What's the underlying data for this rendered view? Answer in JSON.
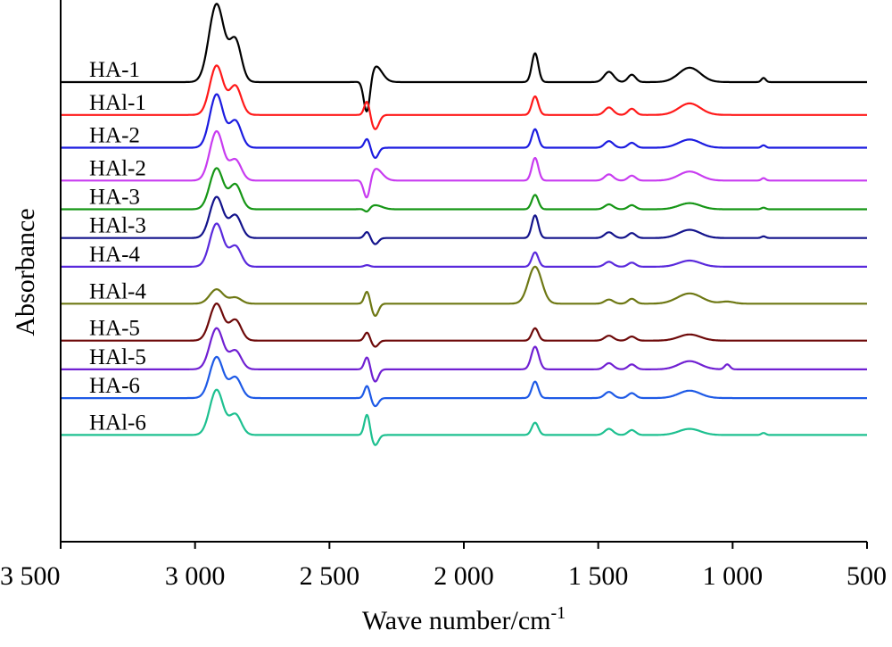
{
  "chart_data": {
    "type": "line",
    "title": "",
    "xlabel": "Wave number/cm",
    "xlabel_superscript": "-1",
    "ylabel": "Absorbance",
    "xlim": [
      3500,
      500
    ],
    "x_reversed": true,
    "x_ticks": [
      3500,
      3000,
      2500,
      2000,
      1500,
      1000,
      500
    ],
    "x_tick_labels": [
      "3 500",
      "3 000",
      "2 500",
      "2 000",
      "1 500",
      "1 000",
      "500"
    ],
    "y_ticks_shown": false,
    "legend": "inline labels at left of each trace",
    "series": [
      {
        "name": "HA-1",
        "color": "#000000",
        "offset": 11.2,
        "peaks": [
          [
            2920,
            1.9,
            28
          ],
          [
            2850,
            1.0,
            22
          ],
          [
            2360,
            -0.9,
            12
          ],
          [
            2330,
            0.4,
            25
          ],
          [
            1735,
            0.7,
            12
          ],
          [
            1460,
            0.25,
            18
          ],
          [
            1375,
            0.18,
            14
          ],
          [
            1160,
            0.35,
            40
          ],
          [
            885,
            0.1,
            8
          ]
        ]
      },
      {
        "name": "HAl-1",
        "color": "#ff1a1a",
        "offset": 10.4,
        "peaks": [
          [
            2920,
            1.2,
            25
          ],
          [
            2850,
            0.7,
            22
          ],
          [
            2360,
            0.35,
            10
          ],
          [
            2330,
            -0.35,
            14
          ],
          [
            1735,
            0.45,
            12
          ],
          [
            1460,
            0.18,
            16
          ],
          [
            1375,
            0.15,
            14
          ],
          [
            1160,
            0.28,
            40
          ]
        ]
      },
      {
        "name": "HA-2",
        "color": "#1c1ce0",
        "offset": 9.6,
        "peaks": [
          [
            2920,
            1.3,
            25
          ],
          [
            2850,
            0.65,
            22
          ],
          [
            2360,
            0.22,
            10
          ],
          [
            2330,
            -0.25,
            12
          ],
          [
            1735,
            0.45,
            12
          ],
          [
            1460,
            0.16,
            16
          ],
          [
            1375,
            0.12,
            14
          ],
          [
            1160,
            0.2,
            40
          ],
          [
            885,
            0.06,
            8
          ]
        ]
      },
      {
        "name": "HAl-2",
        "color": "#c83cf0",
        "offset": 8.8,
        "peaks": [
          [
            2920,
            1.2,
            25
          ],
          [
            2850,
            0.5,
            22
          ],
          [
            2360,
            -0.55,
            12
          ],
          [
            2330,
            0.3,
            25
          ],
          [
            1735,
            0.55,
            12
          ],
          [
            1460,
            0.15,
            16
          ],
          [
            1375,
            0.12,
            14
          ],
          [
            1160,
            0.22,
            40
          ],
          [
            885,
            0.06,
            8
          ]
        ]
      },
      {
        "name": "HA-3",
        "color": "#169616",
        "offset": 8.1,
        "peaks": [
          [
            2920,
            1.0,
            25
          ],
          [
            2850,
            0.6,
            22
          ],
          [
            2360,
            -0.1,
            10
          ],
          [
            2330,
            0.1,
            25
          ],
          [
            1735,
            0.35,
            12
          ],
          [
            1460,
            0.12,
            16
          ],
          [
            1375,
            0.1,
            14
          ],
          [
            1160,
            0.15,
            40
          ],
          [
            885,
            0.04,
            8
          ]
        ]
      },
      {
        "name": "HAl-3",
        "color": "#14148c",
        "offset": 7.4,
        "peaks": [
          [
            2920,
            1.0,
            25
          ],
          [
            2850,
            0.55,
            22
          ],
          [
            2360,
            0.15,
            10
          ],
          [
            2330,
            -0.15,
            12
          ],
          [
            1735,
            0.55,
            12
          ],
          [
            1460,
            0.14,
            16
          ],
          [
            1375,
            0.12,
            14
          ],
          [
            1160,
            0.2,
            40
          ],
          [
            885,
            0.04,
            8
          ]
        ]
      },
      {
        "name": "HA-4",
        "color": "#5a2adc",
        "offset": 6.7,
        "peaks": [
          [
            2920,
            1.05,
            25
          ],
          [
            2850,
            0.5,
            22
          ],
          [
            2360,
            0.04,
            10
          ],
          [
            1735,
            0.35,
            12
          ],
          [
            1460,
            0.12,
            16
          ],
          [
            1375,
            0.1,
            14
          ],
          [
            1160,
            0.15,
            40
          ]
        ]
      },
      {
        "name": "HAl-4",
        "color": "#6e7814",
        "offset": 5.8,
        "peaks": [
          [
            2920,
            0.35,
            25
          ],
          [
            2850,
            0.15,
            22
          ],
          [
            2360,
            0.3,
            10
          ],
          [
            2330,
            -0.3,
            12
          ],
          [
            1735,
            0.9,
            25
          ],
          [
            1460,
            0.1,
            16
          ],
          [
            1375,
            0.12,
            14
          ],
          [
            1160,
            0.25,
            45
          ],
          [
            1020,
            0.05,
            25
          ]
        ]
      },
      {
        "name": "HA-5",
        "color": "#6e0a0a",
        "offset": 4.9,
        "peaks": [
          [
            2920,
            0.9,
            25
          ],
          [
            2850,
            0.5,
            22
          ],
          [
            2360,
            0.2,
            10
          ],
          [
            2330,
            -0.15,
            12
          ],
          [
            1735,
            0.3,
            12
          ],
          [
            1460,
            0.12,
            16
          ],
          [
            1375,
            0.1,
            14
          ],
          [
            1160,
            0.15,
            40
          ]
        ]
      },
      {
        "name": "HAl-5",
        "color": "#7020d2",
        "offset": 4.2,
        "peaks": [
          [
            2920,
            1.0,
            25
          ],
          [
            2850,
            0.45,
            22
          ],
          [
            2360,
            0.3,
            10
          ],
          [
            2330,
            -0.3,
            12
          ],
          [
            1735,
            0.55,
            14
          ],
          [
            1460,
            0.15,
            16
          ],
          [
            1375,
            0.12,
            14
          ],
          [
            1160,
            0.2,
            40
          ],
          [
            1020,
            0.12,
            10
          ]
        ]
      },
      {
        "name": "HA-6",
        "color": "#1e5ae6",
        "offset": 3.5,
        "peaks": [
          [
            2920,
            1.0,
            25
          ],
          [
            2850,
            0.5,
            22
          ],
          [
            2360,
            0.3,
            10
          ],
          [
            2330,
            -0.2,
            12
          ],
          [
            1735,
            0.4,
            12
          ],
          [
            1460,
            0.15,
            16
          ],
          [
            1375,
            0.12,
            14
          ],
          [
            1160,
            0.18,
            40
          ]
        ]
      },
      {
        "name": "HAl-6",
        "color": "#1ec090",
        "offset": 2.6,
        "peaks": [
          [
            2920,
            1.1,
            25
          ],
          [
            2850,
            0.5,
            22
          ],
          [
            2360,
            0.5,
            10
          ],
          [
            2330,
            -0.25,
            12
          ],
          [
            1735,
            0.3,
            12
          ],
          [
            1460,
            0.15,
            16
          ],
          [
            1375,
            0.12,
            14
          ],
          [
            1160,
            0.15,
            40
          ],
          [
            885,
            0.05,
            8
          ]
        ]
      }
    ]
  }
}
